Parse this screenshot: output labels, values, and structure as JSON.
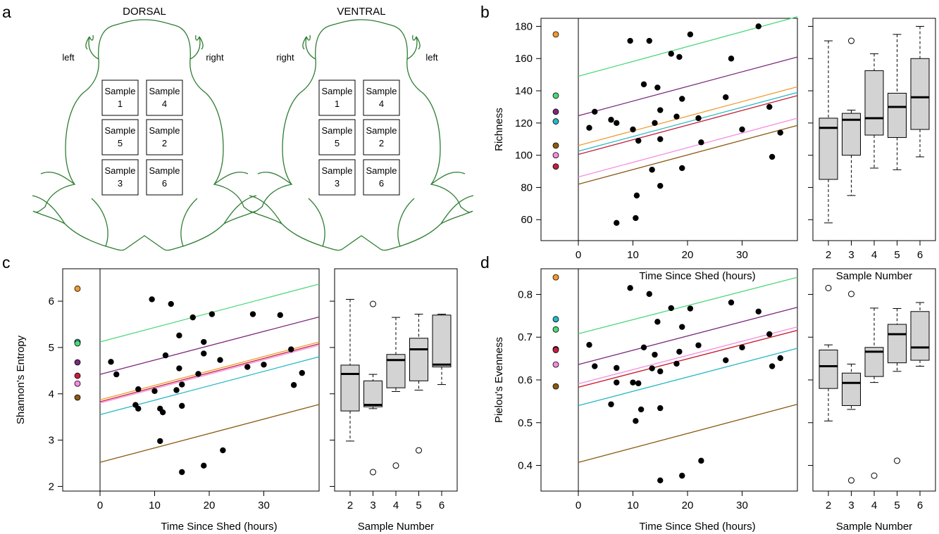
{
  "panel_letters": {
    "a": "a",
    "b": "b",
    "c": "c",
    "d": "d"
  },
  "diagram": {
    "dorsal_title": "DORSAL",
    "ventral_title": "VENTRAL",
    "dorsal_left": "left",
    "dorsal_right": "right",
    "ventral_left": "right",
    "ventral_right": "left",
    "sample_word": "Sample",
    "dorsal_grid": [
      [
        "1",
        "4"
      ],
      [
        "5",
        "2"
      ],
      [
        "3",
        "6"
      ]
    ],
    "ventral_grid": [
      [
        "1",
        "4"
      ],
      [
        "5",
        "2"
      ],
      [
        "3",
        "6"
      ]
    ],
    "outline_color": "#2e7d32"
  },
  "colors": {
    "green": "#4cd97b",
    "purple": "#7b2a7a",
    "orange": "#f29a2e",
    "cyan": "#26b8c4",
    "red": "#c4203e",
    "pink": "#f48de0",
    "brown": "#8b5a12",
    "box_fill": "#d3d3d3"
  },
  "x_axis_label": "Time Since Shed (hours)",
  "box_x_label": "Sample Number",
  "chart_data": [
    {
      "id": "b",
      "type": "scatter",
      "ylabel": "Richness",
      "xlabel": "Time Since Shed (hours)",
      "ylim": [
        47,
        185
      ],
      "xlim": [
        -13,
        38
      ],
      "yticks": [
        60,
        80,
        100,
        120,
        140,
        160,
        180
      ],
      "xticks": [
        0,
        10,
        20,
        30
      ],
      "intercepts": [
        {
          "color": "orange",
          "value": 175
        },
        {
          "color": "green",
          "value": 137
        },
        {
          "color": "purple",
          "value": 127
        },
        {
          "color": "cyan",
          "value": 121
        },
        {
          "color": "brown",
          "value": 106
        },
        {
          "color": "pink",
          "value": 100
        },
        {
          "color": "red",
          "value": 93
        }
      ],
      "points": [
        [
          2,
          117
        ],
        [
          3,
          127
        ],
        [
          6,
          122
        ],
        [
          7,
          58
        ],
        [
          7,
          120
        ],
        [
          9.5,
          171
        ],
        [
          10,
          116
        ],
        [
          10.5,
          61
        ],
        [
          10.7,
          75
        ],
        [
          11,
          109
        ],
        [
          12,
          144
        ],
        [
          13,
          171
        ],
        [
          13.5,
          91
        ],
        [
          14,
          120
        ],
        [
          14.5,
          142
        ],
        [
          15,
          110
        ],
        [
          15,
          128
        ],
        [
          15,
          81
        ],
        [
          17,
          163
        ],
        [
          18,
          124
        ],
        [
          18.5,
          161
        ],
        [
          19,
          135
        ],
        [
          19,
          92
        ],
        [
          20.5,
          175
        ],
        [
          22,
          123
        ],
        [
          22.5,
          108
        ],
        [
          27,
          136
        ],
        [
          28,
          160
        ],
        [
          30,
          116
        ],
        [
          33,
          180
        ],
        [
          35,
          130
        ],
        [
          35.5,
          99
        ],
        [
          37,
          114
        ]
      ],
      "lines": [
        {
          "color": "green",
          "y0": 149,
          "y1": 186
        },
        {
          "color": "purple",
          "y0": 124.5,
          "y1": 161
        },
        {
          "color": "orange",
          "y0": 106,
          "y1": 142.5
        },
        {
          "color": "cyan",
          "y0": 102.5,
          "y1": 139
        },
        {
          "color": "red",
          "y0": 100.5,
          "y1": 137
        },
        {
          "color": "pink",
          "y0": 86.5,
          "y1": 123
        },
        {
          "color": "brown",
          "y0": 82,
          "y1": 118.5
        }
      ],
      "boxplot": {
        "categories": [
          "2",
          "3",
          "4",
          "5",
          "6"
        ],
        "boxes": [
          {
            "min": 58,
            "q1": 85,
            "median": 117,
            "q3": 123,
            "max": 171,
            "outliers": []
          },
          {
            "min": 75,
            "q1": 100,
            "median": 122,
            "q3": 126,
            "max": 128,
            "outliers": [
              171
            ]
          },
          {
            "min": 92,
            "q1": 112.5,
            "median": 123,
            "q3": 152.5,
            "max": 163,
            "outliers": []
          },
          {
            "min": 91,
            "q1": 111,
            "median": 130,
            "q3": 138.5,
            "max": 175,
            "outliers": []
          },
          {
            "min": 99,
            "q1": 116,
            "median": 136,
            "q3": 160,
            "max": 180,
            "outliers": []
          }
        ]
      }
    },
    {
      "id": "c",
      "type": "scatter",
      "ylabel": "Shannon's Entropy",
      "xlabel": "Time Since Shed (hours)",
      "ylim": [
        1.9,
        6.7
      ],
      "xlim": [
        -13,
        38
      ],
      "yticks": [
        2,
        3,
        4,
        5,
        6
      ],
      "xticks": [
        0,
        10,
        20,
        30
      ],
      "intercepts": [
        {
          "color": "orange",
          "value": 6.27
        },
        {
          "color": "cyan",
          "value": 5.12
        },
        {
          "color": "green",
          "value": 5.09
        },
        {
          "color": "purple",
          "value": 4.68
        },
        {
          "color": "red",
          "value": 4.39
        },
        {
          "color": "pink",
          "value": 4.22
        },
        {
          "color": "brown",
          "value": 3.92
        }
      ],
      "points": [
        [
          2,
          4.69
        ],
        [
          3,
          4.42
        ],
        [
          6.5,
          3.76
        ],
        [
          7,
          3.68
        ],
        [
          7,
          4.1
        ],
        [
          9.5,
          6.04
        ],
        [
          10,
          4.06
        ],
        [
          11,
          3.68
        ],
        [
          11,
          2.98
        ],
        [
          11.5,
          3.6
        ],
        [
          12,
          4.83
        ],
        [
          13,
          5.94
        ],
        [
          14,
          4.08
        ],
        [
          14.5,
          5.26
        ],
        [
          14.5,
          4.55
        ],
        [
          15,
          4.2
        ],
        [
          15,
          3.74
        ],
        [
          15,
          2.31
        ],
        [
          17,
          5.65
        ],
        [
          18,
          4.43
        ],
        [
          19,
          5.12
        ],
        [
          19,
          4.87
        ],
        [
          19,
          2.45
        ],
        [
          20.5,
          5.72
        ],
        [
          22,
          4.73
        ],
        [
          22.5,
          2.78
        ],
        [
          27,
          4.58
        ],
        [
          28,
          5.72
        ],
        [
          30,
          4.63
        ],
        [
          33,
          5.7
        ],
        [
          35,
          4.96
        ],
        [
          35.5,
          4.19
        ],
        [
          37,
          4.45
        ]
      ],
      "lines": [
        {
          "color": "green",
          "y0": 5.12,
          "y1": 6.37
        },
        {
          "color": "purple",
          "y0": 4.42,
          "y1": 5.66
        },
        {
          "color": "orange",
          "y0": 3.87,
          "y1": 5.12
        },
        {
          "color": "red",
          "y0": 3.83,
          "y1": 5.08
        },
        {
          "color": "pink",
          "y0": 3.8,
          "y1": 5.05
        },
        {
          "color": "cyan",
          "y0": 3.55,
          "y1": 4.8
        },
        {
          "color": "brown",
          "y0": 2.52,
          "y1": 3.77
        }
      ],
      "boxplot": {
        "categories": [
          "2",
          "3",
          "4",
          "5",
          "6"
        ],
        "boxes": [
          {
            "min": 2.98,
            "q1": 3.63,
            "median": 4.43,
            "q3": 4.62,
            "max": 6.04,
            "outliers": []
          },
          {
            "min": 3.68,
            "q1": 3.72,
            "median": 3.76,
            "q3": 4.28,
            "max": 4.42,
            "outliers": [
              5.94,
              2.31
            ]
          },
          {
            "min": 4.05,
            "q1": 4.13,
            "median": 4.73,
            "q3": 4.85,
            "max": 5.65,
            "outliers": [
              2.45
            ]
          },
          {
            "min": 4.08,
            "q1": 4.28,
            "median": 4.96,
            "q3": 5.2,
            "max": 5.72,
            "outliers": [
              2.78
            ]
          },
          {
            "min": 4.2,
            "q1": 4.58,
            "median": 4.63,
            "q3": 5.7,
            "max": 5.72,
            "outliers": []
          }
        ]
      }
    },
    {
      "id": "d",
      "type": "scatter",
      "ylabel": "Pielou's Evenness",
      "xlabel": "Time Since Shed (hours)",
      "ylim": [
        0.34,
        0.86
      ],
      "xlim": [
        -13,
        38
      ],
      "yticks": [
        0.4,
        0.5,
        0.6,
        0.7,
        0.8
      ],
      "ytick_labels": [
        "0.4",
        "0.5",
        "0.6",
        "0.7",
        "0.8"
      ],
      "xticks": [
        0,
        10,
        20,
        30
      ],
      "intercepts": [
        {
          "color": "orange",
          "value": 0.84
        },
        {
          "color": "cyan",
          "value": 0.742
        },
        {
          "color": "green",
          "value": 0.718
        },
        {
          "color": "purple",
          "value": 0.672
        },
        {
          "color": "red",
          "value": 0.67
        },
        {
          "color": "pink",
          "value": 0.636
        },
        {
          "color": "brown",
          "value": 0.585
        }
      ],
      "points": [
        [
          2,
          0.682
        ],
        [
          3,
          0.632
        ],
        [
          6,
          0.543
        ],
        [
          7,
          0.628
        ],
        [
          7,
          0.594
        ],
        [
          9.5,
          0.815
        ],
        [
          10,
          0.594
        ],
        [
          10.5,
          0.504
        ],
        [
          11,
          0.592
        ],
        [
          11.5,
          0.531
        ],
        [
          12,
          0.676
        ],
        [
          13,
          0.801
        ],
        [
          13.5,
          0.627
        ],
        [
          14,
          0.659
        ],
        [
          14.5,
          0.736
        ],
        [
          15,
          0.534
        ],
        [
          15,
          0.62
        ],
        [
          15,
          0.365
        ],
        [
          17,
          0.768
        ],
        [
          18,
          0.638
        ],
        [
          18.5,
          0.666
        ],
        [
          19,
          0.724
        ],
        [
          19,
          0.376
        ],
        [
          20.5,
          0.767
        ],
        [
          22,
          0.681
        ],
        [
          22.5,
          0.411
        ],
        [
          27,
          0.646
        ],
        [
          28,
          0.781
        ],
        [
          30,
          0.676
        ],
        [
          33,
          0.76
        ],
        [
          35,
          0.707
        ],
        [
          35.5,
          0.632
        ],
        [
          37,
          0.651
        ]
      ],
      "lines": [
        {
          "color": "green",
          "y0": 0.708,
          "y1": 0.84
        },
        {
          "color": "purple",
          "y0": 0.636,
          "y1": 0.77
        },
        {
          "color": "pink",
          "y0": 0.591,
          "y1": 0.724
        },
        {
          "color": "orange",
          "y0": 0.583,
          "y1": 0.716
        },
        {
          "color": "red",
          "y0": 0.583,
          "y1": 0.716
        },
        {
          "color": "cyan",
          "y0": 0.54,
          "y1": 0.674
        },
        {
          "color": "brown",
          "y0": 0.407,
          "y1": 0.543
        }
      ],
      "boxplot": {
        "categories": [
          "2",
          "3",
          "4",
          "5",
          "6"
        ],
        "boxes": [
          {
            "min": 0.504,
            "q1": 0.58,
            "median": 0.632,
            "q3": 0.67,
            "max": 0.682,
            "outliers": [
              0.815
            ]
          },
          {
            "min": 0.531,
            "q1": 0.54,
            "median": 0.593,
            "q3": 0.616,
            "max": 0.637,
            "outliers": [
              0.801,
              0.365
            ]
          },
          {
            "min": 0.594,
            "q1": 0.608,
            "median": 0.666,
            "q3": 0.676,
            "max": 0.768,
            "outliers": [
              0.376
            ]
          },
          {
            "min": 0.62,
            "q1": 0.64,
            "median": 0.707,
            "q3": 0.73,
            "max": 0.767,
            "outliers": [
              0.411
            ]
          },
          {
            "min": 0.632,
            "q1": 0.646,
            "median": 0.676,
            "q3": 0.76,
            "max": 0.781,
            "outliers": []
          }
        ]
      }
    }
  ]
}
